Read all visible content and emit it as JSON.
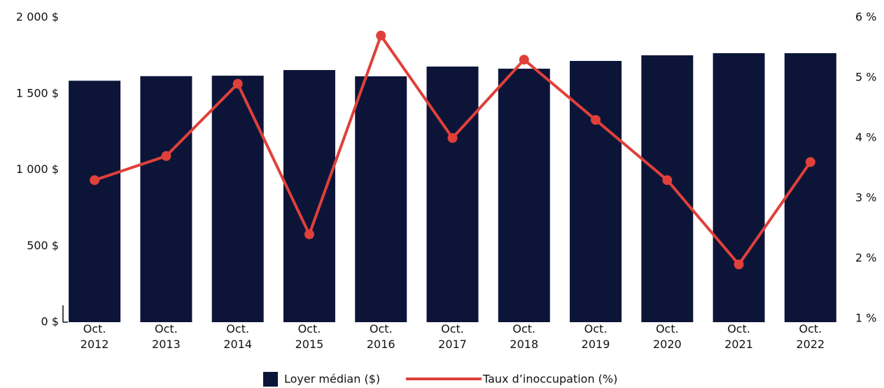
{
  "chart_data": {
    "type": "bar+line",
    "categories": [
      "Oct. 2012",
      "Oct. 2013",
      "Oct. 2014",
      "Oct. 2015",
      "Oct. 2016",
      "Oct. 2017",
      "Oct. 2018",
      "Oct. 2019",
      "Oct. 2020",
      "Oct. 2021",
      "Oct. 2022"
    ],
    "series": [
      {
        "name": "Loyer médian ($)",
        "type": "bar",
        "color": "#0c1538",
        "values": [
          1585,
          1615,
          1618,
          1655,
          1614,
          1678,
          1664,
          1715,
          1752,
          1766,
          1766
        ]
      },
      {
        "name": "Taux d’inoccupation (%)",
        "type": "line",
        "axis": "y2",
        "color": "#e0403a",
        "values": [
          3.3,
          3.7,
          4.9,
          2.4,
          5.7,
          4.0,
          5.3,
          4.3,
          3.3,
          1.9,
          3.6
        ]
      }
    ],
    "ylim": [
      0,
      2000
    ],
    "yticks": [
      {
        "value": 0,
        "label": "0 $"
      },
      {
        "value": 500,
        "label": "500 $"
      },
      {
        "value": 1000,
        "label": "1 000 $"
      },
      {
        "value": 1500,
        "label": "1 500 $"
      },
      {
        "value": 2000,
        "label": "2 000 $"
      }
    ],
    "y2lim": [
      1,
      6
    ],
    "y2ticks": [
      {
        "value": 1,
        "label": "1 %"
      },
      {
        "value": 2,
        "label": "2 %"
      },
      {
        "value": 3,
        "label": "3 %"
      },
      {
        "value": 4,
        "label": "4 %"
      },
      {
        "value": 5,
        "label": "5 %"
      },
      {
        "value": 6,
        "label": "6 %"
      }
    ],
    "legend": "bottom"
  }
}
